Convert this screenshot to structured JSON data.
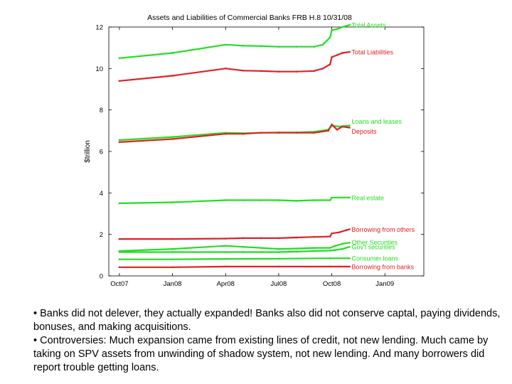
{
  "chart_data": {
    "type": "line",
    "title": "Assets and Liabilities of Commercial Banks FRB H.8 10/31/08",
    "ylabel": "$trillion",
    "xlabel": "",
    "ylim": [
      0,
      12
    ],
    "yticks": [
      0,
      2,
      4,
      6,
      8,
      10,
      12
    ],
    "x_tick_labels": [
      "Oct07",
      "Jan08",
      "Apr08",
      "Jul08",
      "Oct08",
      "Jan09"
    ],
    "x_tick_months": [
      0,
      3,
      6,
      9,
      12,
      15
    ],
    "xlim_months": [
      -0.6,
      17.2
    ],
    "grid": false,
    "legend": "inline labels at right end of lines",
    "series": [
      {
        "name": "Total Assets",
        "color": "#22dd22",
        "points": [
          [
            0,
            10.5
          ],
          [
            3,
            10.75
          ],
          [
            6,
            11.15
          ],
          [
            7,
            11.1
          ],
          [
            8,
            11.08
          ],
          [
            9,
            11.05
          ],
          [
            10,
            11.05
          ],
          [
            11,
            11.05
          ],
          [
            11.5,
            11.15
          ],
          [
            11.9,
            11.5
          ],
          [
            12,
            11.85
          ],
          [
            12.3,
            11.9
          ],
          [
            12.6,
            12.0
          ],
          [
            13.0,
            12.1
          ]
        ]
      },
      {
        "name": "Total Liabilities",
        "color": "#dd2222",
        "points": [
          [
            0,
            9.4
          ],
          [
            3,
            9.65
          ],
          [
            6,
            10.0
          ],
          [
            7,
            9.9
          ],
          [
            8,
            9.88
          ],
          [
            9,
            9.85
          ],
          [
            10,
            9.85
          ],
          [
            11,
            9.88
          ],
          [
            11.5,
            10.0
          ],
          [
            11.9,
            10.2
          ],
          [
            12,
            10.55
          ],
          [
            12.3,
            10.65
          ],
          [
            12.6,
            10.75
          ],
          [
            13.0,
            10.8
          ]
        ]
      },
      {
        "name": "Loans and leases",
        "color": "#22dd22",
        "points": [
          [
            0,
            6.55
          ],
          [
            3,
            6.7
          ],
          [
            6,
            6.9
          ],
          [
            7,
            6.88
          ],
          [
            8,
            6.9
          ],
          [
            9,
            6.92
          ],
          [
            10,
            6.92
          ],
          [
            11,
            6.95
          ],
          [
            11.8,
            7.05
          ],
          [
            12,
            7.25
          ],
          [
            12.4,
            7.2
          ],
          [
            13.0,
            7.25
          ]
        ]
      },
      {
        "name": "Deposits",
        "color": "#dd2222",
        "points": [
          [
            0,
            6.45
          ],
          [
            3,
            6.6
          ],
          [
            6,
            6.85
          ],
          [
            7,
            6.85
          ],
          [
            8,
            6.9
          ],
          [
            9,
            6.9
          ],
          [
            10,
            6.9
          ],
          [
            11,
            6.9
          ],
          [
            11.8,
            7.0
          ],
          [
            12,
            7.3
          ],
          [
            12.3,
            7.05
          ],
          [
            12.6,
            7.2
          ],
          [
            13.0,
            7.15
          ]
        ]
      },
      {
        "name": "Real estate",
        "color": "#22dd22",
        "points": [
          [
            0,
            3.5
          ],
          [
            3,
            3.55
          ],
          [
            6,
            3.65
          ],
          [
            7,
            3.65
          ],
          [
            8,
            3.65
          ],
          [
            9,
            3.65
          ],
          [
            10,
            3.62
          ],
          [
            11,
            3.65
          ],
          [
            11.9,
            3.65
          ],
          [
            12,
            3.78
          ],
          [
            13.0,
            3.78
          ]
        ]
      },
      {
        "name": "Borrowing from others",
        "color": "#dd2222",
        "points": [
          [
            0,
            1.78
          ],
          [
            3,
            1.78
          ],
          [
            6,
            1.8
          ],
          [
            7,
            1.82
          ],
          [
            8,
            1.82
          ],
          [
            9,
            1.82
          ],
          [
            10,
            1.85
          ],
          [
            11,
            1.88
          ],
          [
            11.9,
            1.9
          ],
          [
            12,
            2.05
          ],
          [
            12.4,
            2.1
          ],
          [
            12.8,
            2.2
          ],
          [
            13.0,
            2.25
          ]
        ]
      },
      {
        "name": "Other Securities",
        "color": "#22dd22",
        "points": [
          [
            0,
            1.2
          ],
          [
            3,
            1.3
          ],
          [
            6,
            1.45
          ],
          [
            7,
            1.4
          ],
          [
            8,
            1.35
          ],
          [
            9,
            1.3
          ],
          [
            10,
            1.32
          ],
          [
            11,
            1.35
          ],
          [
            11.9,
            1.35
          ],
          [
            12.2,
            1.45
          ],
          [
            12.6,
            1.55
          ],
          [
            13.0,
            1.6
          ]
        ]
      },
      {
        "name": "Gov't securities",
        "color": "#22dd22",
        "points": [
          [
            0,
            1.15
          ],
          [
            3,
            1.15
          ],
          [
            6,
            1.15
          ],
          [
            7,
            1.15
          ],
          [
            8,
            1.15
          ],
          [
            9,
            1.15
          ],
          [
            10,
            1.17
          ],
          [
            11,
            1.2
          ],
          [
            11.9,
            1.22
          ],
          [
            12.2,
            1.25
          ],
          [
            12.6,
            1.3
          ],
          [
            13.0,
            1.4
          ]
        ]
      },
      {
        "name": "Consumer loans",
        "color": "#22dd22",
        "points": [
          [
            0,
            0.8
          ],
          [
            3,
            0.8
          ],
          [
            6,
            0.82
          ],
          [
            9,
            0.83
          ],
          [
            11.9,
            0.85
          ],
          [
            13.0,
            0.85
          ]
        ]
      },
      {
        "name": "Borrowing from banks",
        "color": "#dd2222",
        "points": [
          [
            0,
            0.42
          ],
          [
            3,
            0.42
          ],
          [
            6,
            0.45
          ],
          [
            9,
            0.45
          ],
          [
            11.9,
            0.45
          ],
          [
            12.5,
            0.45
          ],
          [
            13.0,
            0.45
          ]
        ]
      }
    ]
  },
  "notes": [
    "• Banks did not delever, they actually expanded! Banks also did not conserve captal, paying dividends, bonuses, and making acquisitions.",
    "• Controversies: Much expansion came from existing lines of credit, not new lending. Much came by taking on SPV assets from unwinding of shadow system, not new lending.  And many borrowers did report trouble getting loans."
  ]
}
